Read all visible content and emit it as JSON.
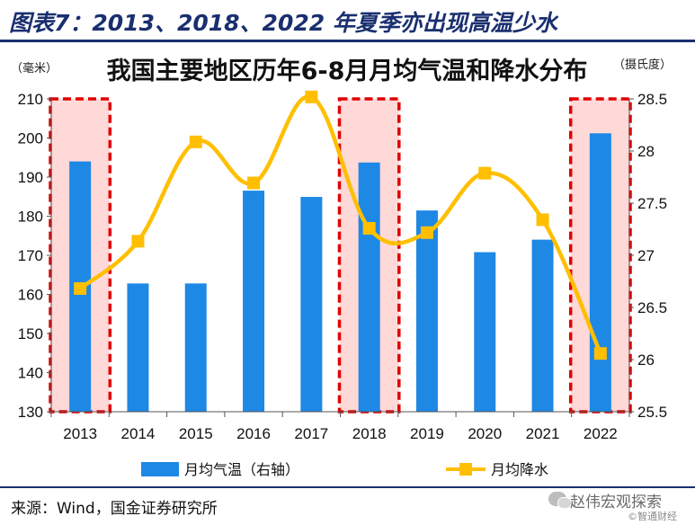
{
  "header": {
    "title": "图表7：2013、2018、2022 年夏季亦出现高温少水"
  },
  "footer": {
    "source": "来源：Wind，国金证券研究所",
    "watermark": "赵伟宏观探索",
    "watermark_sub": "©智通财经"
  },
  "colors": {
    "bar": "#1e88e5",
    "line": "#ffbf00",
    "highlight_fill": "#ffd8d8",
    "highlight_border": "#e00000",
    "header": "#1a2f6f"
  },
  "chart_data": {
    "type": "bar",
    "title": "我国主要地区历年6-8月月均气温和降水分布",
    "y_left_unit": "（毫米）",
    "y_right_unit": "（摄氏度）",
    "categories": [
      "2013",
      "2014",
      "2015",
      "2016",
      "2017",
      "2018",
      "2019",
      "2020",
      "2021",
      "2022"
    ],
    "y_left_ticks": [
      "210",
      "200",
      "190",
      "180",
      "170",
      "160",
      "150",
      "140",
      "130"
    ],
    "y_right_ticks": [
      "28.5",
      "28",
      "27.5",
      "27",
      "26.5",
      "26",
      "25.5"
    ],
    "ylim_left": [
      130,
      210
    ],
    "ylim_right": [
      25.5,
      28.5
    ],
    "series": [
      {
        "name": "月均气温（右轴）",
        "type": "bar",
        "axis": "right",
        "values": [
          27.9,
          26.73,
          26.73,
          27.62,
          27.56,
          27.89,
          27.43,
          27.03,
          27.15,
          28.17
        ]
      },
      {
        "name": "月均降水",
        "type": "line",
        "axis": "left",
        "values": [
          161.5,
          173.6,
          199,
          188.5,
          210.5,
          176.9,
          175.8,
          191,
          179.1,
          144.9
        ]
      }
    ],
    "highlighted_categories": [
      "2013",
      "2018",
      "2022"
    ],
    "grid": false,
    "legend_position": "bottom"
  }
}
